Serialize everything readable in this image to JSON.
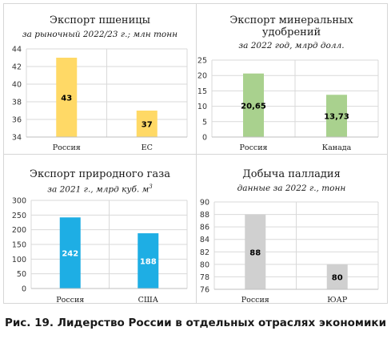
{
  "caption": "Рис. 19. Лидерство России в отдельных отраслях экономики",
  "chart_data": [
    {
      "type": "bar",
      "title": "Экспорт пшеницы",
      "subtitle": "за рыночный 2022/23 г.; млн тонн",
      "categories": [
        "Россия",
        "ЕС"
      ],
      "values": [
        43,
        37
      ],
      "value_labels": [
        "43",
        "37"
      ],
      "ylim": [
        34,
        44
      ],
      "yticks": [
        34,
        36,
        38,
        40,
        42,
        44
      ],
      "color": "#ffd966",
      "label_color": "#000000",
      "grid": true
    },
    {
      "type": "bar",
      "title": "Экспорт минеральных удобрений",
      "subtitle": "за 2022 год, млрд долл.",
      "categories": [
        "Россия",
        "Канада"
      ],
      "values": [
        20.65,
        13.73
      ],
      "value_labels": [
        "20,65",
        "13,73"
      ],
      "ylim": [
        0,
        25
      ],
      "yticks": [
        0,
        5,
        10,
        15,
        20,
        25
      ],
      "color": "#a9d18e",
      "label_color": "#000000",
      "grid": true
    },
    {
      "type": "bar",
      "title": "Экспорт природного газа",
      "subtitle": "за 2021 г., млрд куб. м",
      "subtitle_sup": "3",
      "categories": [
        "Россия",
        "США"
      ],
      "values": [
        242,
        188
      ],
      "value_labels": [
        "242",
        "188"
      ],
      "ylim": [
        0,
        300
      ],
      "yticks": [
        0,
        50,
        100,
        150,
        200,
        250,
        300
      ],
      "color": "#1eaee4",
      "label_color": "#ffffff",
      "grid": true
    },
    {
      "type": "bar",
      "title": "Добыча палладия",
      "subtitle": "данные за 2022 г., тонн",
      "categories": [
        "Россия",
        "ЮАР"
      ],
      "values": [
        88,
        80
      ],
      "value_labels": [
        "88",
        "80"
      ],
      "ylim": [
        76,
        90
      ],
      "yticks": [
        76,
        78,
        80,
        82,
        84,
        86,
        88,
        90
      ],
      "color": "#d0d0d0",
      "label_color": "#000000",
      "grid": true
    }
  ]
}
